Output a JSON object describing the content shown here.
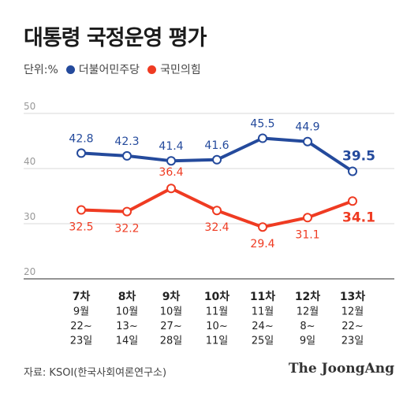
{
  "title": "대통령 국정운영 평가",
  "legend": {
    "unit": "단위:%"
  },
  "source": "자료: KSOI(한국사회여론연구소)",
  "brand": "The JoongAng",
  "colors": {
    "dem": "#244a9c",
    "ppp": "#ef3b22",
    "grid": "#d9d9d9",
    "tick": "#999999"
  },
  "chart_data": {
    "type": "line",
    "categories": [
      [
        "7차",
        "9월",
        "22~",
        "23일"
      ],
      [
        "8차",
        "10월",
        "13~",
        "14일"
      ],
      [
        "9차",
        "10월",
        "27~",
        "28일"
      ],
      [
        "10차",
        "11월",
        "10~",
        "11일"
      ],
      [
        "11차",
        "11월",
        "24~",
        "25일"
      ],
      [
        "12차",
        "12월",
        "8~",
        "9일"
      ],
      [
        "13차",
        "12월",
        "22~",
        "23일"
      ]
    ],
    "yticks": [
      20,
      30,
      40,
      50
    ],
    "ylim": [
      20,
      50
    ],
    "grid": true,
    "legend_position": "top-left",
    "series": [
      {
        "name": "더불어민주당",
        "color": "#244a9c",
        "values": [
          42.8,
          42.3,
          41.4,
          41.6,
          45.5,
          44.9,
          39.5
        ],
        "labels": [
          "42.8",
          "42.3",
          "41.4",
          "41.6",
          "45.5",
          "44.9",
          "39.5"
        ]
      },
      {
        "name": "국민의힘",
        "color": "#ef3b22",
        "values": [
          32.5,
          32.2,
          36.4,
          32.4,
          29.4,
          31.1,
          34.1
        ],
        "labels": [
          "32.5",
          "32.2",
          "36.4",
          "32.4",
          "29.4",
          "31.1",
          "34.1"
        ]
      }
    ]
  }
}
